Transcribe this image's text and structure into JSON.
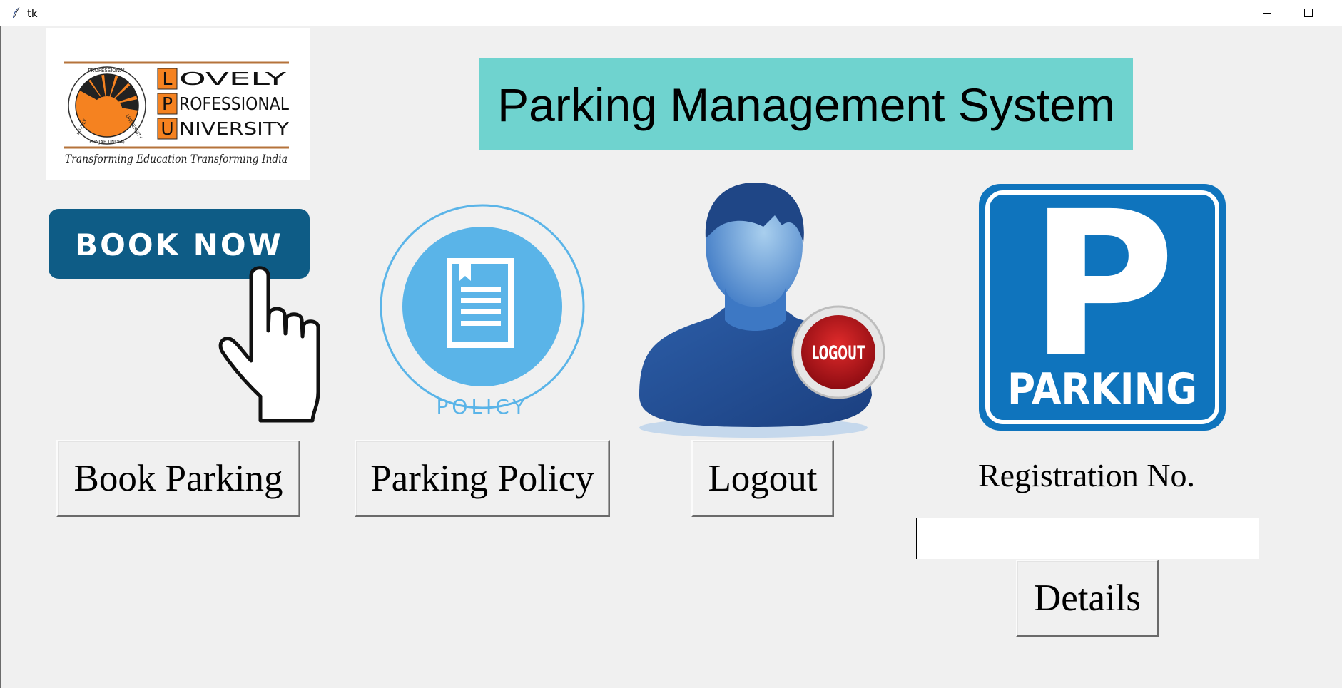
{
  "window": {
    "title": "tk"
  },
  "logo": {
    "letters": [
      "L",
      "P",
      "U"
    ],
    "words": [
      "OVELY",
      "ROFESSIONAL",
      "NIVERSITY"
    ],
    "tagline": "Transforming Education Transforming India",
    "seal_text_top": "PROFESSIONAL",
    "seal_text_left": "LOVELY",
    "seal_text_right": "UNIVERSITY",
    "seal_text_bottom": "PUNJAB (INDIA)"
  },
  "header": {
    "title": "Parking Management System"
  },
  "images": {
    "book_now": {
      "text": "BOOK NOW"
    },
    "policy": {
      "text": "POLICY"
    },
    "logout": {
      "text": "LOGOUT"
    },
    "parking": {
      "letter": "P",
      "text": "PARKING"
    }
  },
  "buttons": {
    "book_parking": "Book Parking",
    "parking_policy": "Parking Policy",
    "logout": "Logout",
    "details": "Details"
  },
  "registration": {
    "label": "Registration No.",
    "value": ""
  },
  "colors": {
    "background": "#f0f0f0",
    "banner": "#6fd3cf",
    "logo_orange": "#f58220",
    "book_blue": "#0e5c86",
    "policy_blue": "#5ab4e8",
    "parking_blue": "#0f74bd",
    "logout_red": "#b3121c"
  }
}
